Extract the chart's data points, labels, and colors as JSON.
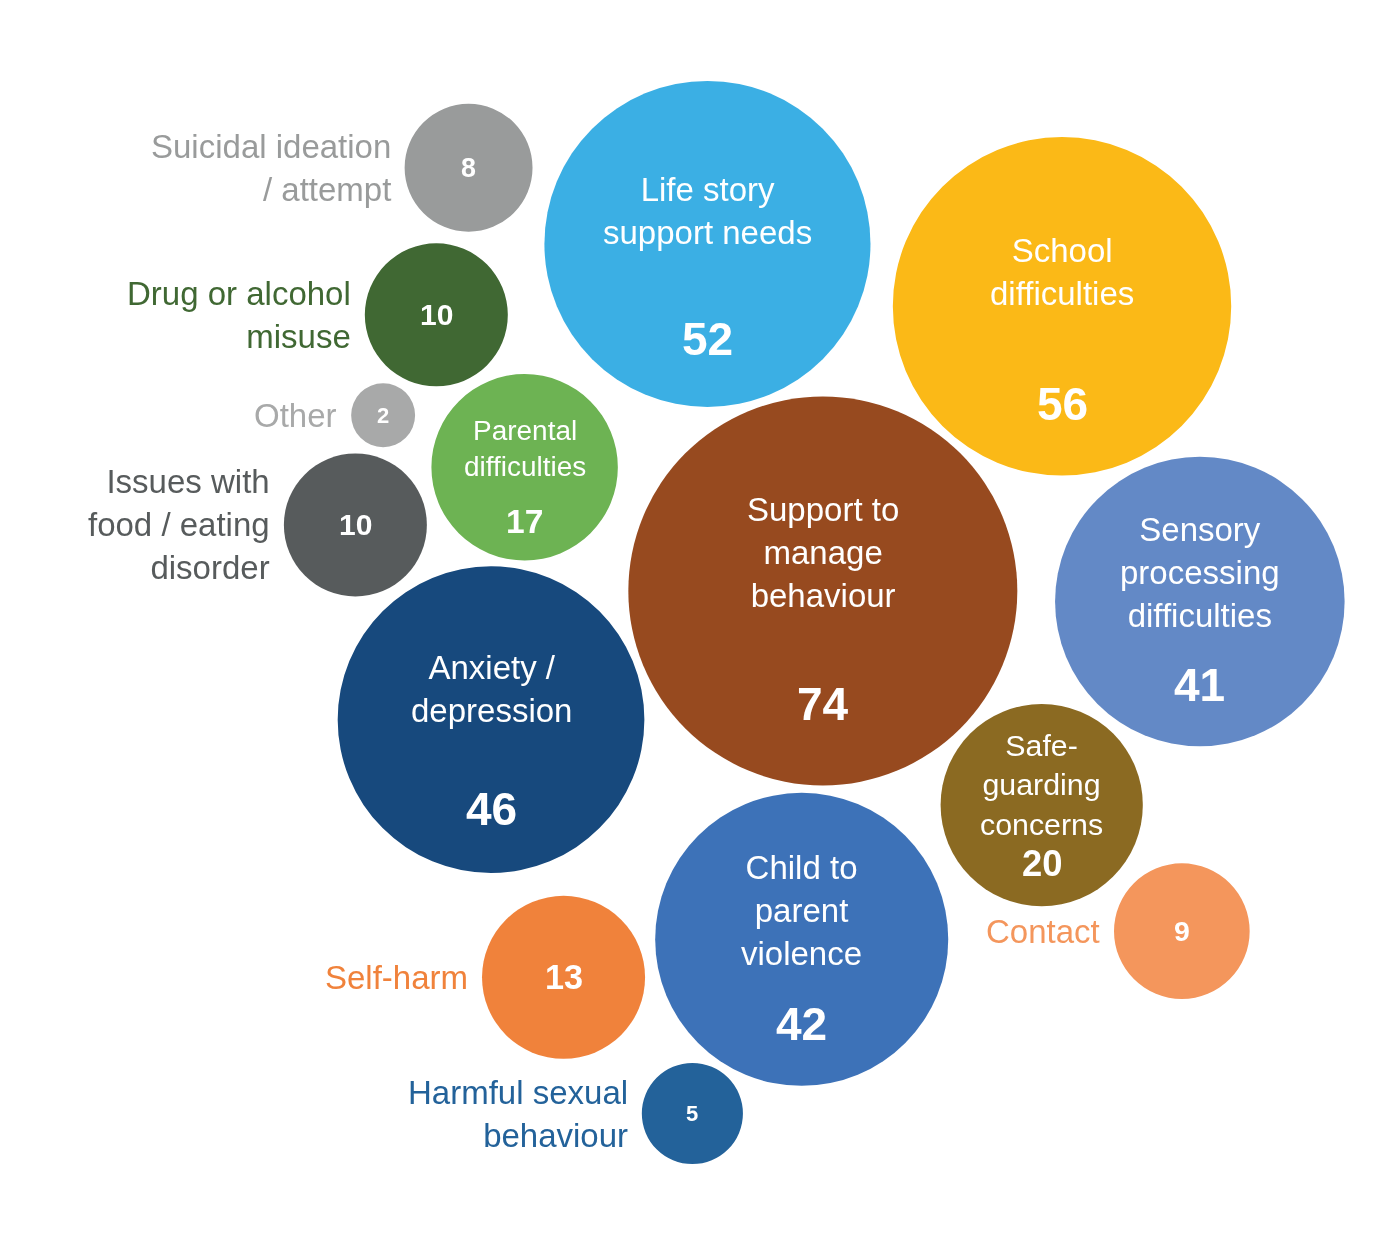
{
  "chart_data": {
    "type": "other",
    "categories": [
      "Support to\nmanage\nbehaviour",
      "School\ndifficulties",
      "Life story\nsupport needs",
      "Anxiety /\ndepression",
      "Child to\nparent\nviolence",
      "Sensory\nprocessing\ndifficulties",
      "Safe-\nguarding\nconcerns",
      "Parental\ndifficulties",
      "Self-harm",
      "Issues with\nfood / eating\ndisorder",
      "Drug or alcohol\nmisuse",
      "Contact",
      "Suicidal ideation\n/ attempt",
      "Harmful sexual\nbehaviour",
      "Other"
    ],
    "values": [
      74,
      56,
      52,
      46,
      42,
      41,
      20,
      17,
      13,
      10,
      10,
      9,
      8,
      5,
      2
    ],
    "colors": [
      "#974a1f",
      "#fbb917",
      "#3bafe4",
      "#17497d",
      "#3d72b8",
      "#6389c6",
      "#8b6a22",
      "#6db353",
      "#f0823b",
      "#575b5c",
      "#406833",
      "#f4965c",
      "#999b9b",
      "#23629a",
      "#a8a9a9"
    ],
    "data_labels": true
  }
}
